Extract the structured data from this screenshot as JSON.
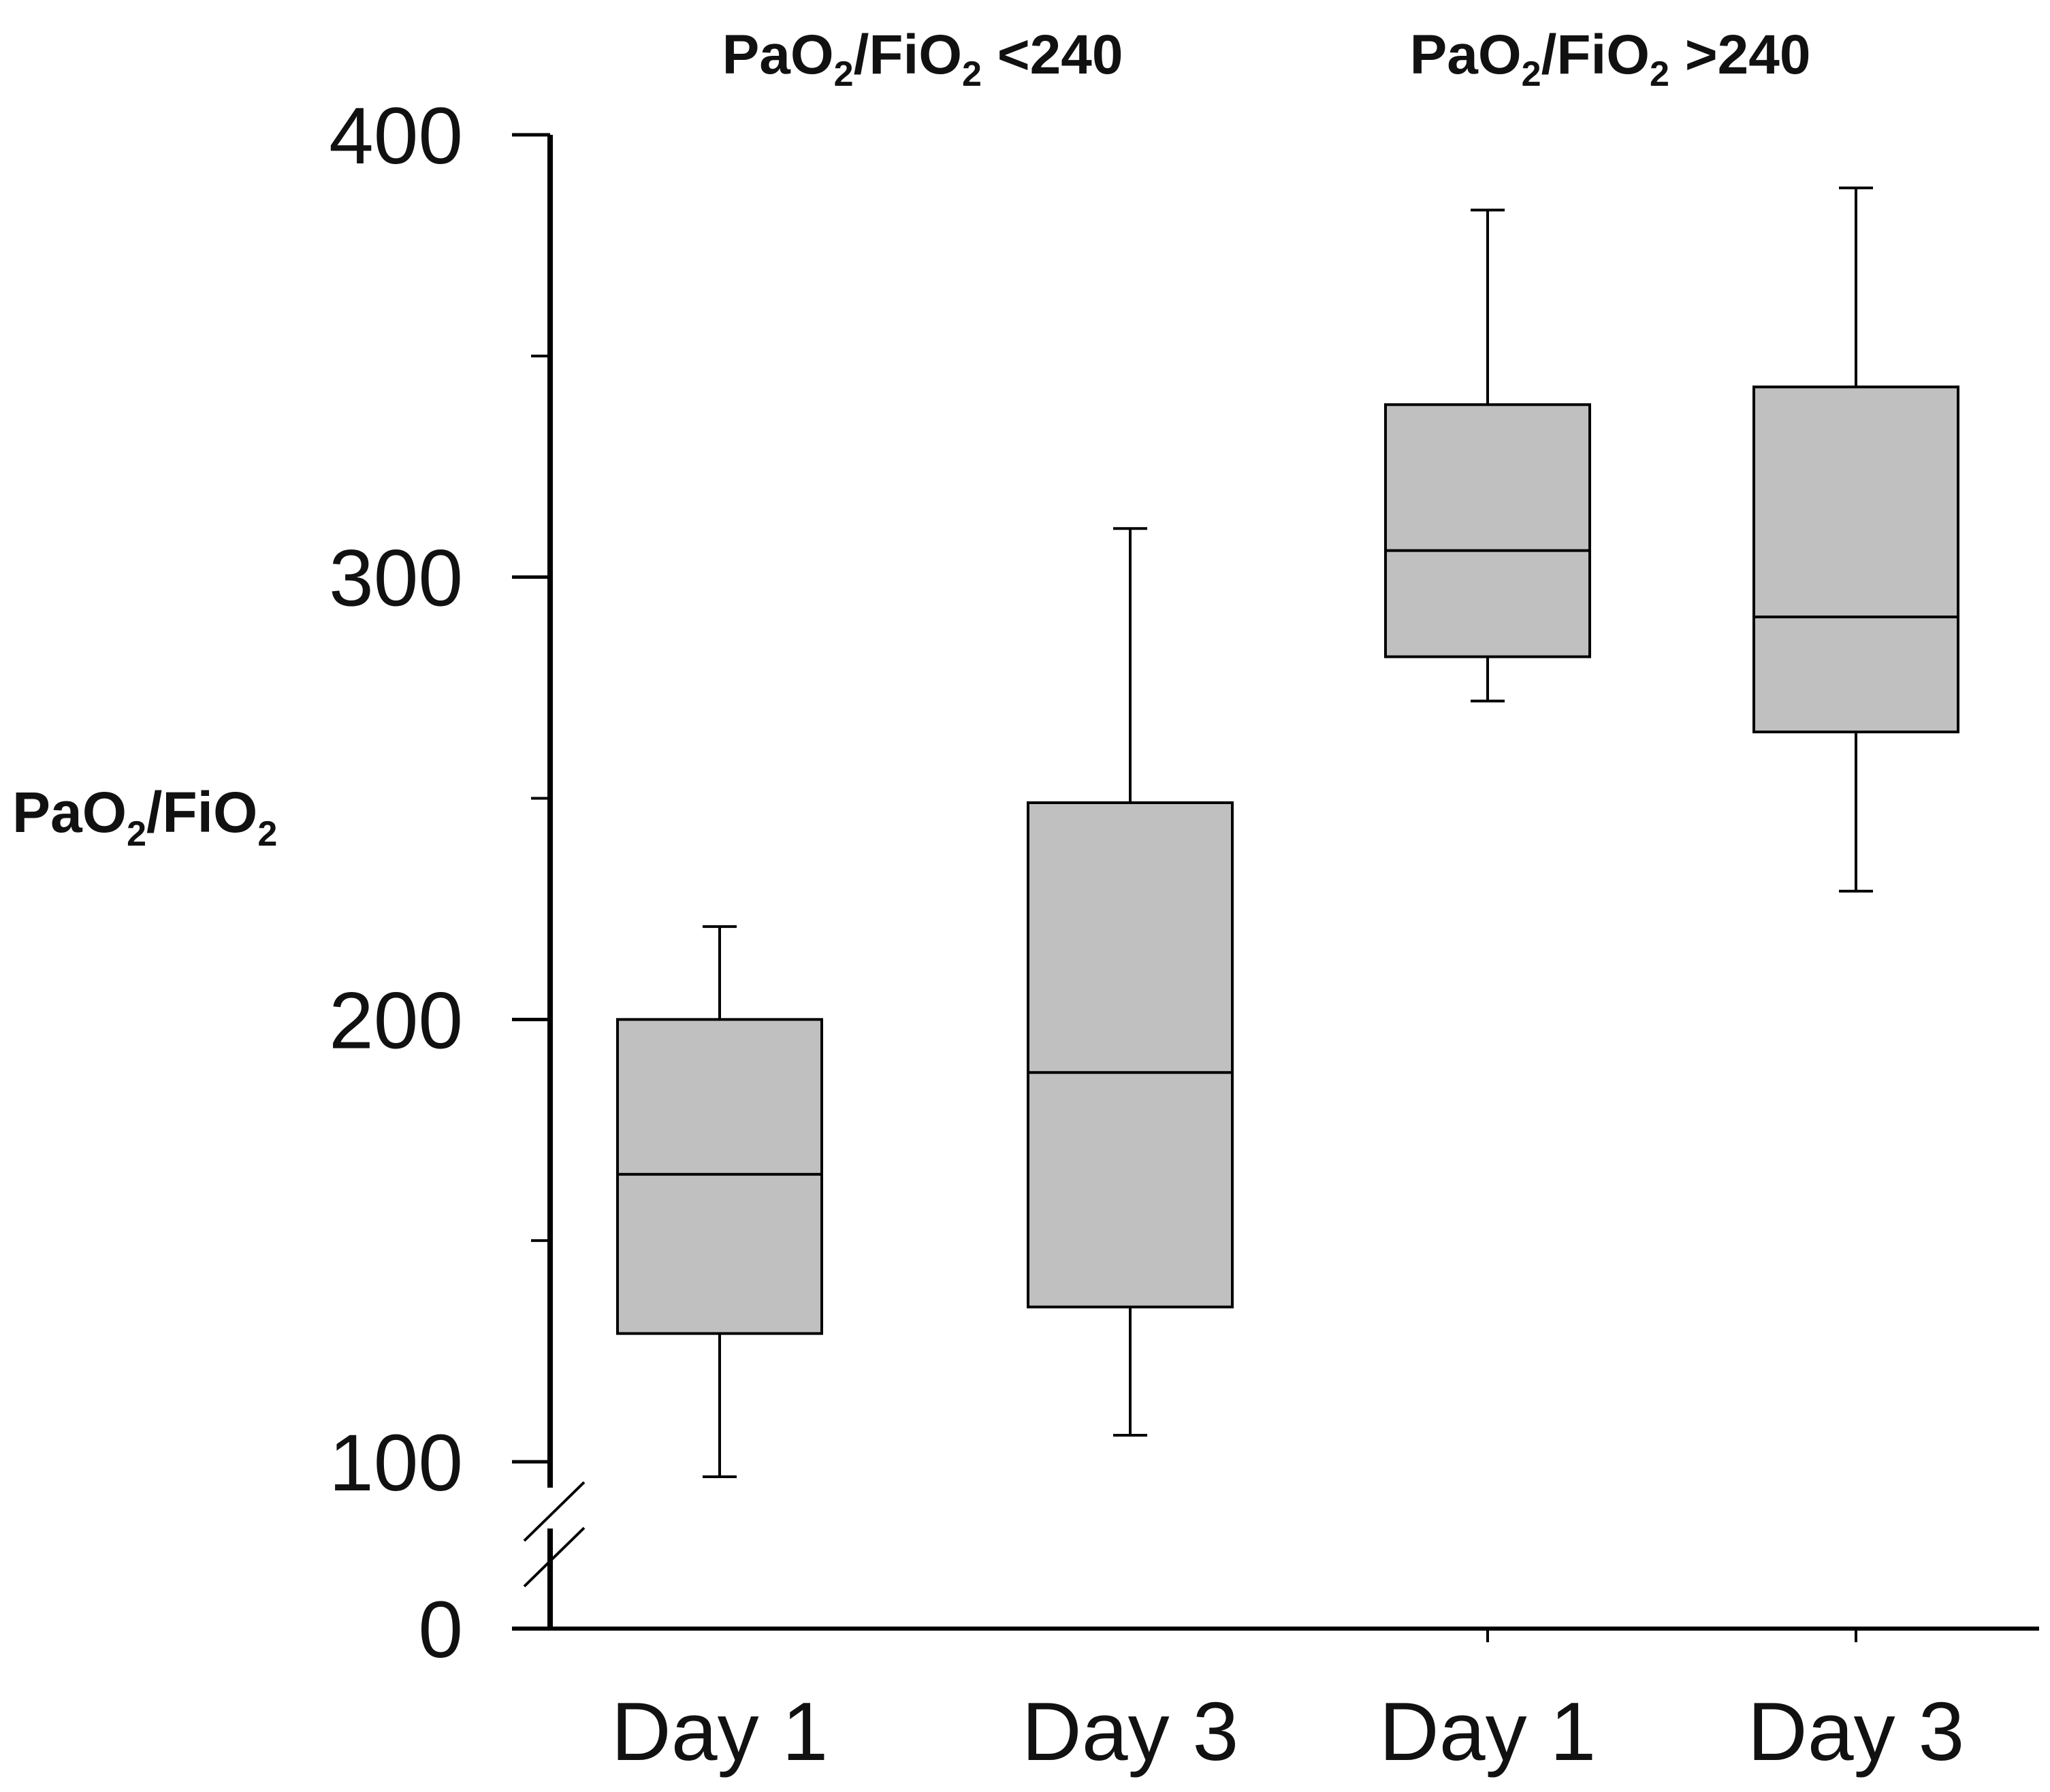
{
  "chart_data": {
    "type": "box",
    "title": "",
    "ylabel": {
      "main": "PaO",
      "sub1": "2",
      "mid": "/FiO",
      "sub2": "2"
    },
    "xlabel": "",
    "ylim": [
      0,
      400
    ],
    "axis_break": {
      "from": 0,
      "to": 100
    },
    "yticks": [
      {
        "value": 0,
        "label": "0"
      },
      {
        "value": 100,
        "label": "100"
      },
      {
        "value": 200,
        "label": "200"
      },
      {
        "value": 300,
        "label": "300"
      },
      {
        "value": 400,
        "label": "400"
      }
    ],
    "minor_yticks": [
      150,
      250,
      350
    ],
    "groups": [
      {
        "label": {
          "pre": "PaO",
          "sub1": "2",
          "mid": "/FiO",
          "sub2": "2",
          "post": " <240"
        },
        "categories": [
          0,
          1
        ]
      },
      {
        "label": {
          "pre": "PaO",
          "sub1": "2",
          "mid": "/FiO",
          "sub2": "2",
          "post": " >240"
        },
        "categories": [
          2,
          3
        ]
      }
    ],
    "categories": [
      "Day 1",
      "Day 3",
      "Day 1",
      "Day 3"
    ],
    "boxes": [
      {
        "whisker_low": 91,
        "q1": 129,
        "median": 165,
        "q3": 200,
        "whisker_high": 221
      },
      {
        "whisker_low": 106,
        "q1": 135,
        "median": 188,
        "q3": 249,
        "whisker_high": 311
      },
      {
        "whisker_low": 272,
        "q1": 282,
        "median": 306,
        "q3": 339,
        "whisker_high": 383
      },
      {
        "whisker_low": 229,
        "q1": 265,
        "median": 291,
        "q3": 343,
        "whisker_high": 388
      }
    ],
    "colors": {
      "box_fill": "#c0c0c0",
      "stroke": "#000000"
    }
  }
}
